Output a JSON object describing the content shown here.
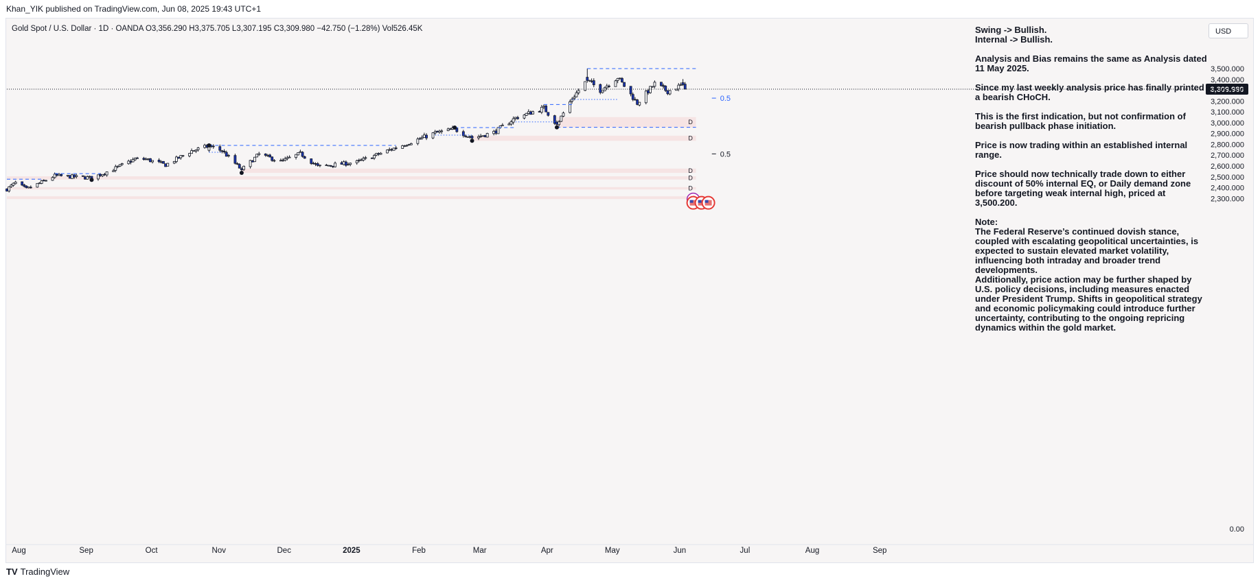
{
  "header": {
    "publisher": "Khan_YIK published on TradingView.com, Jun 08, 2025 19:43 UTC+1"
  },
  "symbol": {
    "name": "Gold Spot / U.S. Dollar · 1D · OANDA",
    "open": "O3,356.290",
    "high": "H3,375.705",
    "low": "L3,307.195",
    "close": "C3,309.980",
    "change": "−42.750 (−1.28%)",
    "volume": "Vol526.45K"
  },
  "currency": "USD",
  "footer": {
    "logo": "TV",
    "brand": "TradingView"
  },
  "colors": {
    "bull_body": "#ffffff",
    "bear_body": "#1b36b5",
    "wick": "#131722",
    "zone": "#f5d5d5",
    "dash": "#2962ff",
    "price_tag": "#131722"
  },
  "icons": [
    "lightning-icon",
    "us-flag-icon"
  ],
  "notes": [
    "Swing -> Bullish.",
    "Internal -> Bullish.",
    "Analysis and Bias remains the same as Analysis dated 11 May 2025.",
    "Since my last weekly analysis price has finally printed a bearish CHoCH.",
    "This is the first indication, but not confirmation of bearish pullback phase initiation.",
    "Price is now trading within an established internal range.",
    "Price should now technically trade down to either discount of 50% internal EQ, or Daily demand zone before targeting weak internal high, priced at 3,500.200.",
    "Note:",
    "The Federal Reserve’s continued dovish stance, coupled with escalating geopolitical uncertainties, is expected to sustain elevated market volatility, influencing both intraday and broader trend developments.",
    "Additionally, price action may be further shaped by U.S. policy decisions, including measures enacted under President Trump. Shifts in geopolitical strategy and economic policymaking could introduce further uncertainty, contributing to the ongoing repricing dynamics within the gold market."
  ],
  "chart_data": {
    "type": "candlestick",
    "x_start": "2024-07-29",
    "x_end": "2025-09-30",
    "ylim": [
      2270,
      3560
    ],
    "y_ticks": [
      "3,500.000",
      "3,400.000",
      "3,300.000",
      "3,200.000",
      "3,100.000",
      "3,000.000",
      "2,900.000",
      "2,800.000",
      "2,700.000",
      "2,600.000",
      "2,500.000",
      "2,400.000",
      "2,300.000"
    ],
    "y_zero_label": "0.00",
    "x_ticks": [
      {
        "label": "Aug",
        "date": "2024-08-01",
        "bold": false
      },
      {
        "label": "Sep",
        "date": "2024-09-01",
        "bold": false
      },
      {
        "label": "Oct",
        "date": "2024-10-01",
        "bold": false
      },
      {
        "label": "Nov",
        "date": "2024-11-01",
        "bold": false
      },
      {
        "label": "Dec",
        "date": "2024-12-01",
        "bold": false
      },
      {
        "label": "2025",
        "date": "2025-01-01",
        "bold": true
      },
      {
        "label": "Feb",
        "date": "2025-02-01",
        "bold": false
      },
      {
        "label": "Mar",
        "date": "2025-03-01",
        "bold": false
      },
      {
        "label": "Apr",
        "date": "2025-04-01",
        "bold": false
      },
      {
        "label": "May",
        "date": "2025-05-01",
        "bold": false
      },
      {
        "label": "Jun",
        "date": "2025-06-01",
        "bold": false
      },
      {
        "label": "Jul",
        "date": "2025-07-01",
        "bold": false
      },
      {
        "label": "Aug",
        "date": "2025-08-01",
        "bold": false
      },
      {
        "label": "Sep",
        "date": "2025-09-01",
        "bold": false
      }
    ],
    "last_price": 3309.98,
    "last_price_label": "3,309.980",
    "anchors": [
      {
        "date": "2024-07-29",
        "price": 2385
      },
      {
        "date": "2024-08-02",
        "price": 2445
      },
      {
        "date": "2024-08-07",
        "price": 2385
      },
      {
        "date": "2024-08-14",
        "price": 2450
      },
      {
        "date": "2024-08-20",
        "price": 2510
      },
      {
        "date": "2024-09-06",
        "price": 2490
      },
      {
        "date": "2024-09-16",
        "price": 2570
      },
      {
        "date": "2024-09-26",
        "price": 2665
      },
      {
        "date": "2024-10-01",
        "price": 2662
      },
      {
        "date": "2024-10-10",
        "price": 2610
      },
      {
        "date": "2024-10-22",
        "price": 2740
      },
      {
        "date": "2024-10-30",
        "price": 2785
      },
      {
        "date": "2024-11-05",
        "price": 2740
      },
      {
        "date": "2024-11-14",
        "price": 2565
      },
      {
        "date": "2024-11-22",
        "price": 2710
      },
      {
        "date": "2024-12-02",
        "price": 2640
      },
      {
        "date": "2024-12-11",
        "price": 2715
      },
      {
        "date": "2024-12-19",
        "price": 2595
      },
      {
        "date": "2025-01-06",
        "price": 2635
      },
      {
        "date": "2025-01-24",
        "price": 2770
      },
      {
        "date": "2025-02-11",
        "price": 2905
      },
      {
        "date": "2025-02-20",
        "price": 2940
      },
      {
        "date": "2025-02-28",
        "price": 2858
      },
      {
        "date": "2025-03-10",
        "price": 2910
      },
      {
        "date": "2025-03-20",
        "price": 3045
      },
      {
        "date": "2025-04-02",
        "price": 3135
      },
      {
        "date": "2025-04-08",
        "price": 2985
      },
      {
        "date": "2025-04-15",
        "price": 3225
      },
      {
        "date": "2025-04-22",
        "price": 3395
      },
      {
        "date": "2025-04-28",
        "price": 3300
      },
      {
        "date": "2025-05-06",
        "price": 3420
      },
      {
        "date": "2025-05-15",
        "price": 3180
      },
      {
        "date": "2025-05-23",
        "price": 3360
      },
      {
        "date": "2025-05-29",
        "price": 3290
      },
      {
        "date": "2025-06-05",
        "price": 3352
      },
      {
        "date": "2025-06-06",
        "price": 3309.98
      }
    ],
    "highlight_candles": [
      {
        "date": "2024-10-30",
        "open": 2745,
        "high": 2790,
        "low": 2730,
        "close": 2785
      },
      {
        "date": "2024-11-14",
        "open": 2575,
        "high": 2590,
        "low": 2537,
        "close": 2565
      },
      {
        "date": "2025-02-28",
        "open": 2875,
        "high": 2885,
        "low": 2833,
        "close": 2858
      },
      {
        "date": "2025-04-08",
        "open": 3005,
        "high": 3020,
        "low": 2957,
        "close": 2985
      },
      {
        "date": "2025-04-22",
        "open": 3420,
        "high": 3500.2,
        "low": 3370,
        "close": 3390
      },
      {
        "date": "2025-06-05",
        "open": 3370,
        "high": 3403,
        "low": 3340,
        "close": 3352
      },
      {
        "date": "2025-06-06",
        "open": 3356.29,
        "high": 3375.705,
        "low": 3307.195,
        "close": 3309.98
      }
    ],
    "demand_zones": [
      {
        "from": "2025-04-08",
        "to": "2025-06-11",
        "low": 2957,
        "high": 3052,
        "label": "D"
      },
      {
        "from": "2025-02-28",
        "to": "2025-06-11",
        "low": 2833,
        "high": 2880,
        "label": "D"
      },
      {
        "from": "2024-11-14",
        "to": "2025-06-11",
        "low": 2537,
        "high": 2576,
        "label": "D"
      },
      {
        "from": "2024-07-29",
        "to": "2025-06-11",
        "low": 2475,
        "high": 2505,
        "label": "D"
      },
      {
        "from": "2024-07-29",
        "to": "2025-06-11",
        "low": 2383,
        "high": 2405,
        "label": "D"
      },
      {
        "from": "2024-07-29",
        "to": "2025-06-11",
        "low": 2295,
        "high": 2320,
        "label": "D"
      }
    ],
    "structure_lines": [
      {
        "from": "2025-04-22",
        "to": "2025-06-11",
        "price": 3500.2,
        "style": "dash"
      },
      {
        "from": "2025-04-08",
        "to": "2025-06-11",
        "price": 2957,
        "style": "dash"
      },
      {
        "from": "2024-10-30",
        "to": "2025-01-24",
        "price": 2790,
        "style": "dash"
      },
      {
        "from": "2025-02-20",
        "to": "2025-03-20",
        "price": 2955,
        "style": "dash"
      },
      {
        "from": "2025-04-02",
        "to": "2025-04-15",
        "price": 3168,
        "style": "dash"
      },
      {
        "from": "2024-08-20",
        "to": "2024-09-10",
        "price": 2530,
        "style": "dash"
      },
      {
        "from": "2024-07-29",
        "to": "2024-08-14",
        "price": 2478,
        "style": "dash"
      },
      {
        "from": "2025-04-15",
        "to": "2025-05-06",
        "price": 3215,
        "style": "dot"
      },
      {
        "from": "2025-03-20",
        "to": "2025-04-08",
        "price": 3007,
        "style": "dot"
      },
      {
        "from": "2025-02-11",
        "to": "2025-02-28",
        "price": 2885,
        "style": "dot"
      },
      {
        "from": "2024-10-30",
        "to": "2024-11-05",
        "price": 2727,
        "style": "dot"
      }
    ],
    "swing_points": [
      {
        "date": "2024-11-14",
        "price": 2537
      },
      {
        "date": "2024-09-06",
        "price": 2472
      },
      {
        "date": "2025-02-28",
        "price": 2833
      },
      {
        "date": "2025-04-08",
        "price": 2957
      },
      {
        "date": "2024-10-30",
        "price": 2790
      },
      {
        "date": "2025-02-20",
        "price": 2955
      }
    ],
    "eq_labels": [
      {
        "date": "2025-06-12",
        "price": 3227,
        "text": "0.5",
        "color": "blue"
      },
      {
        "date": "2025-06-12",
        "price": 2712,
        "text": "0.5",
        "color": "black"
      }
    ],
    "events": [
      {
        "date": "2025-06-11",
        "price": 2292,
        "icon": "lightning-icon"
      },
      {
        "date": "2025-06-11",
        "price": 2260,
        "icon": "us-flag-icon"
      }
    ]
  }
}
